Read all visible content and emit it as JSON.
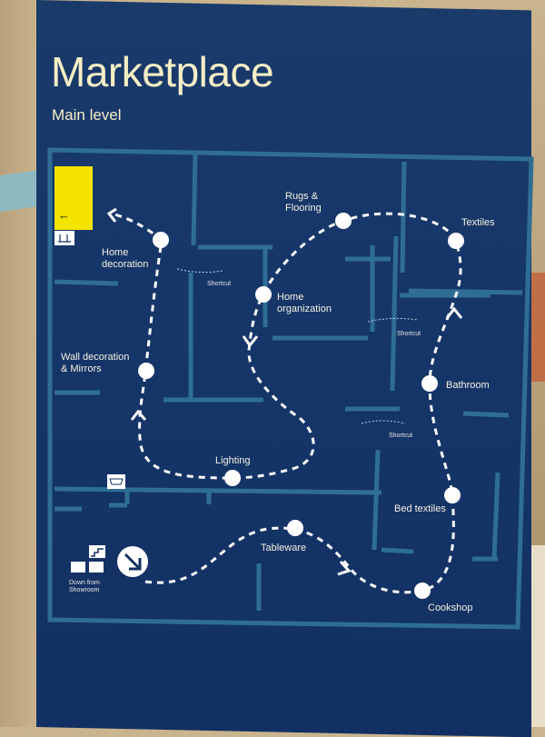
{
  "sign": {
    "title": "Marketplace",
    "subtitle": "Main level"
  },
  "areas": {
    "home_decoration": "Home\ndecoration",
    "rugs_flooring": "Rugs &\nFlooring",
    "textiles": "Textiles",
    "home_organization": "Home\norganization",
    "wall_decoration": "Wall decoration\n& Mirrors",
    "bathroom": "Bathroom",
    "lighting": "Lighting",
    "bed_textiles": "Bed textiles",
    "tableware": "Tableware",
    "cookshop": "Cookshop"
  },
  "shortcuts": [
    "Shortcut",
    "Shortcut",
    "Shortcut"
  ],
  "yellow_box": {
    "arrow": "←"
  },
  "down_from": "Down from\nShowroom",
  "colors": {
    "sign_bg": "#16366a",
    "route": "#ffffff",
    "text": "#f6efc6",
    "highlight": "#f5e400"
  },
  "icons": [
    "stairs-icon",
    "elevator-icon",
    "cart-icon",
    "exit-arrow-icon",
    "checkout-icon"
  ]
}
